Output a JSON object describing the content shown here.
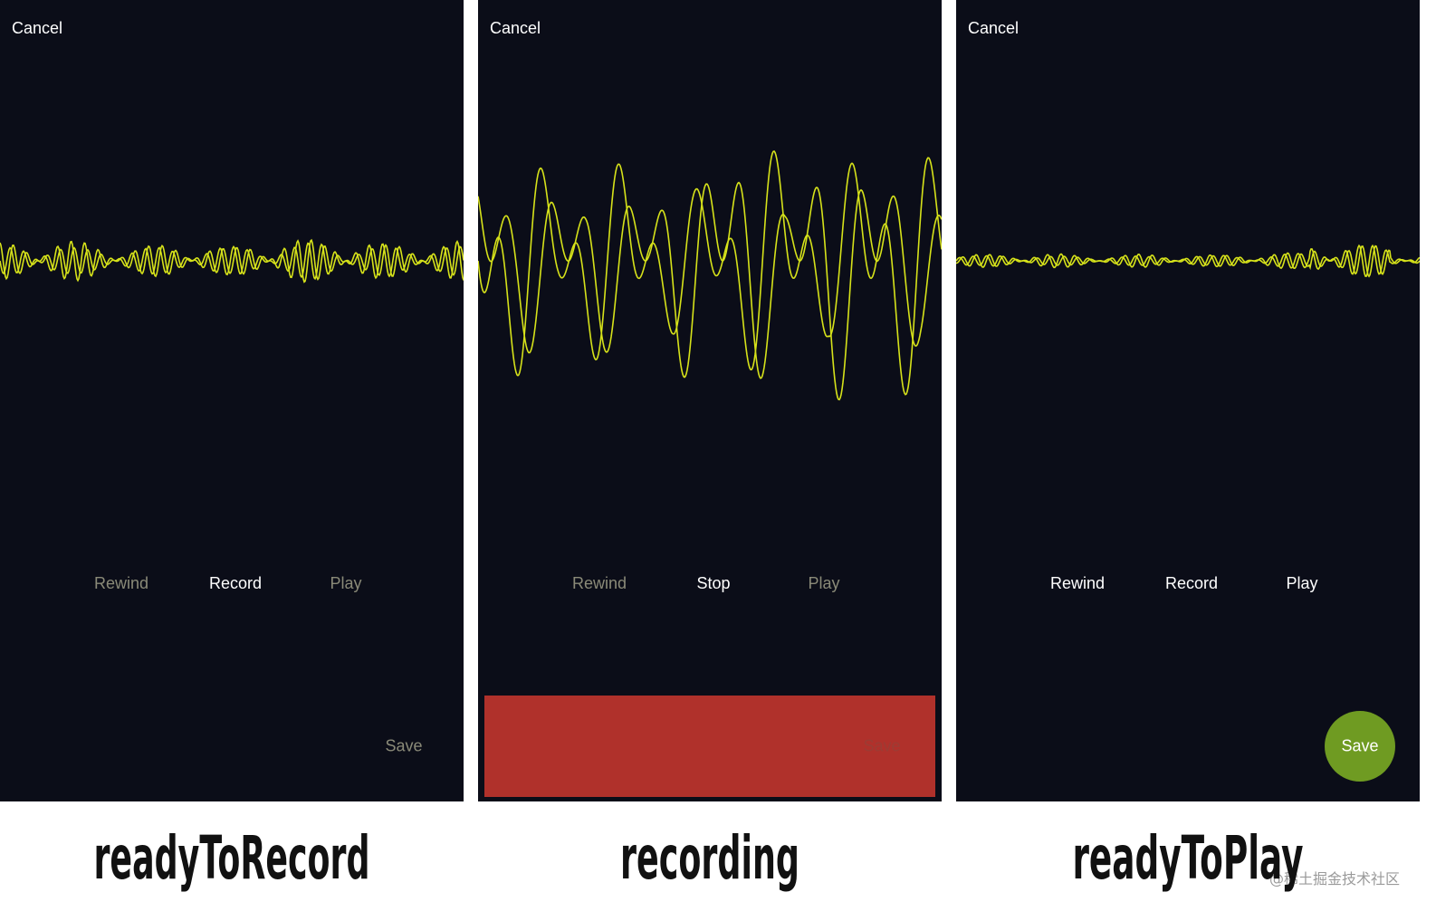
{
  "panels": [
    {
      "cancel": "Cancel",
      "buttons": [
        {
          "label": "Rewind",
          "color": "#8a8a78"
        },
        {
          "label": "Record",
          "color": "#ffffff"
        },
        {
          "label": "Play",
          "color": "#8a8a78"
        }
      ],
      "save": {
        "label": "Save",
        "color": "#8a8a78"
      },
      "caption": "readyToRecord"
    },
    {
      "cancel": "Cancel",
      "buttons": [
        {
          "label": "Rewind",
          "color": "#8a8a78"
        },
        {
          "label": "Stop",
          "color": "#ffffff"
        },
        {
          "label": "Play",
          "color": "#8a8a78"
        }
      ],
      "save": {
        "label": "Save",
        "color": "#9c3c34",
        "bar_color": "#b0312b"
      },
      "caption": "recording"
    },
    {
      "cancel": "Cancel",
      "buttons": [
        {
          "label": "Rewind",
          "color": "#ffffff"
        },
        {
          "label": "Record",
          "color": "#ffffff"
        },
        {
          "label": "Play",
          "color": "#ffffff"
        }
      ],
      "save": {
        "label": "Save",
        "color": "#ffffff",
        "circle_color": "#6f9b22"
      },
      "caption": "readyToPlay"
    }
  ],
  "watermark": "@稀土掘金技术社区"
}
